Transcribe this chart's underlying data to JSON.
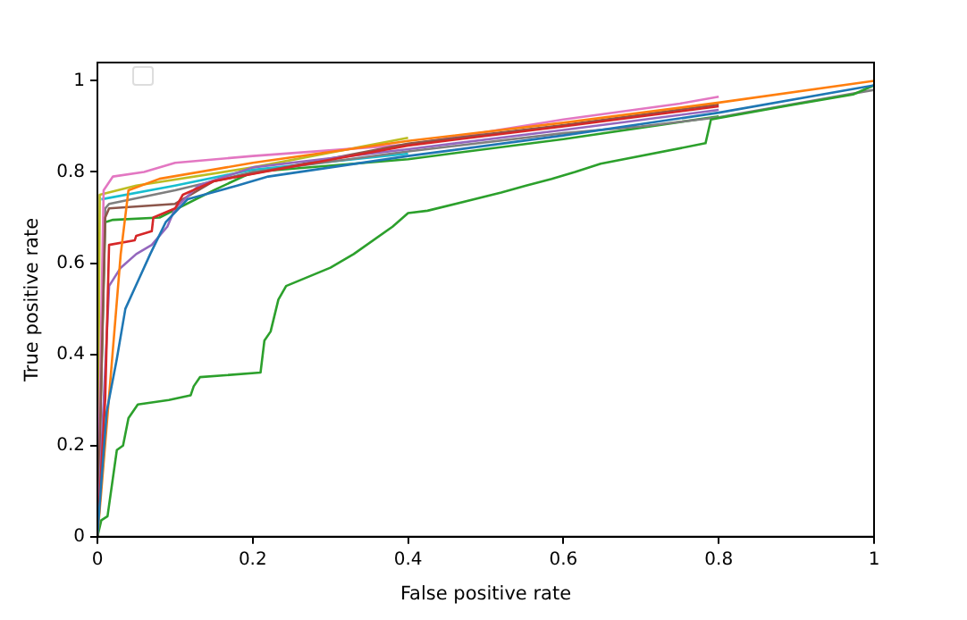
{
  "chart_data": {
    "type": "line",
    "xlabel": "False positive rate",
    "ylabel": "True positive rate",
    "xlim": [
      0,
      1
    ],
    "ylim": [
      0,
      1.04
    ],
    "xticks": [
      0,
      0.2,
      0.4,
      0.6,
      0.8,
      1
    ],
    "yticks": [
      0,
      0.2,
      0.4,
      0.6,
      0.8,
      1
    ],
    "grid": false,
    "legend": false,
    "marker": "none",
    "line_style": "solid",
    "series": [
      {
        "color": "#1f77b4",
        "x": [
          0,
          0.005,
          0.012,
          0.025,
          0.036,
          0.052,
          0.068,
          0.088,
          0.116,
          0.18,
          0.22,
          0.4,
          0.6,
          0.8,
          1
        ],
        "values": [
          0,
          0.12,
          0.275,
          0.39,
          0.5,
          0.56,
          0.62,
          0.69,
          0.74,
          0.77,
          0.79,
          0.835,
          0.88,
          0.93,
          0.99
        ]
      },
      {
        "color": "#ff7f0e",
        "x": [
          0,
          0.005,
          0.03,
          0.04,
          0.08,
          0.2,
          0.4,
          0.6,
          0.8,
          1
        ],
        "values": [
          0,
          0.1,
          0.62,
          0.76,
          0.785,
          0.82,
          0.868,
          0.908,
          0.952,
          1
        ]
      },
      {
        "color": "#2ca02c",
        "x": [
          0,
          0.005,
          0.013,
          0.025,
          0.033,
          0.04,
          0.052,
          0.092,
          0.12,
          0.124,
          0.132,
          0.21,
          0.215,
          0.223,
          0.233,
          0.243,
          0.3,
          0.33,
          0.38,
          0.4,
          0.425,
          0.52,
          0.552,
          0.585,
          0.615,
          0.648,
          0.783,
          0.79,
          0.894,
          0.973,
          1
        ],
        "values": [
          0,
          0.036,
          0.045,
          0.19,
          0.2,
          0.26,
          0.29,
          0.3,
          0.31,
          0.33,
          0.35,
          0.36,
          0.43,
          0.45,
          0.52,
          0.55,
          0.59,
          0.62,
          0.68,
          0.71,
          0.715,
          0.755,
          0.77,
          0.785,
          0.8,
          0.818,
          0.863,
          0.915,
          0.947,
          0.97,
          0.99
        ]
      },
      {
        "color": "#d62728",
        "x": [
          0,
          0.01,
          0.015,
          0.048,
          0.05,
          0.07,
          0.072,
          0.1,
          0.11,
          0.15,
          0.4,
          0.6,
          0.8
        ],
        "values": [
          0,
          0.3,
          0.64,
          0.65,
          0.66,
          0.67,
          0.7,
          0.72,
          0.75,
          0.78,
          0.858,
          0.9,
          0.944
        ]
      },
      {
        "color": "#9467bd",
        "x": [
          0,
          0.015,
          0.03,
          0.05,
          0.07,
          0.09,
          0.1,
          0.13,
          0.2,
          0.4,
          0.6,
          0.8
        ],
        "values": [
          0,
          0.55,
          0.59,
          0.62,
          0.64,
          0.68,
          0.72,
          0.77,
          0.81,
          0.85,
          0.892,
          0.936
        ]
      },
      {
        "color": "#8c564b",
        "x": [
          0,
          0.01,
          0.015,
          0.1,
          0.15,
          0.4,
          0.6,
          0.8
        ],
        "values": [
          0,
          0.7,
          0.72,
          0.73,
          0.78,
          0.862,
          0.903,
          0.948
        ]
      },
      {
        "color": "#e377c2",
        "x": [
          0,
          0.008,
          0.02,
          0.06,
          0.1,
          0.2,
          0.4,
          0.6,
          0.75,
          0.8
        ],
        "values": [
          0,
          0.76,
          0.79,
          0.8,
          0.82,
          0.835,
          0.86,
          0.915,
          0.95,
          0.965
        ]
      },
      {
        "color": "#7f7f7f",
        "x": [
          0,
          0.01,
          0.015,
          0.1,
          0.2,
          0.4,
          0.6,
          0.7,
          0.8,
          1
        ],
        "values": [
          0,
          0.72,
          0.73,
          0.76,
          0.8,
          0.845,
          0.885,
          0.9,
          0.92,
          0.98
        ]
      },
      {
        "color": "#bcbd22",
        "x": [
          0,
          0.003,
          0.05,
          0.2,
          0.4
        ],
        "values": [
          0,
          0.75,
          0.77,
          0.81,
          0.875
        ]
      },
      {
        "color": "#17becf",
        "x": [
          0.005,
          0.1,
          0.2,
          0.4
        ],
        "values": [
          0.74,
          0.77,
          0.805,
          0.84
        ]
      },
      {
        "color": "#2ca02c",
        "x": [
          0,
          0.01,
          0.02,
          0.08,
          0.15,
          0.2,
          0.4,
          0.6,
          0.8
        ],
        "values": [
          0,
          0.69,
          0.695,
          0.7,
          0.76,
          0.8,
          0.828,
          0.872,
          0.922
        ]
      }
    ]
  }
}
